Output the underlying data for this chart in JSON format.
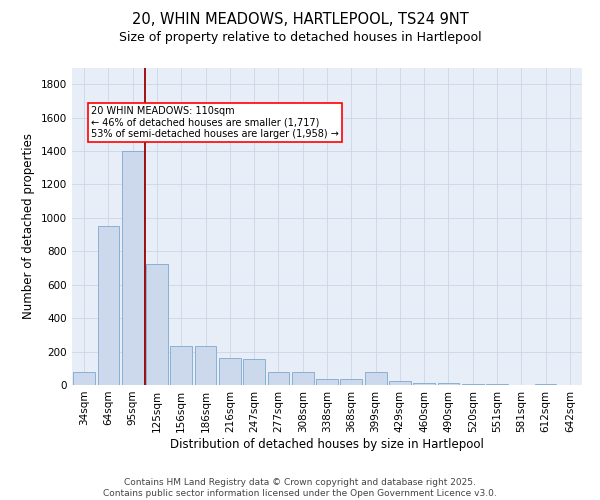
{
  "title_line1": "20, WHIN MEADOWS, HARTLEPOOL, TS24 9NT",
  "title_line2": "Size of property relative to detached houses in Hartlepool",
  "xlabel": "Distribution of detached houses by size in Hartlepool",
  "ylabel": "Number of detached properties",
  "categories": [
    "34sqm",
    "64sqm",
    "95sqm",
    "125sqm",
    "156sqm",
    "186sqm",
    "216sqm",
    "247sqm",
    "277sqm",
    "308sqm",
    "338sqm",
    "368sqm",
    "399sqm",
    "429sqm",
    "460sqm",
    "490sqm",
    "520sqm",
    "551sqm",
    "581sqm",
    "612sqm",
    "642sqm"
  ],
  "values": [
    75,
    950,
    1400,
    725,
    235,
    235,
    160,
    155,
    80,
    80,
    35,
    35,
    80,
    25,
    10,
    10,
    5,
    5,
    0,
    5,
    0
  ],
  "bar_color": "#ccd9ec",
  "bar_edge_color": "#7fa8cc",
  "grid_color": "#ccd6e8",
  "background_color": "#e8eef8",
  "vline_color": "#990000",
  "annotation_text": "20 WHIN MEADOWS: 110sqm\n← 46% of detached houses are smaller (1,717)\n53% of semi-detached houses are larger (1,958) →",
  "ylim": [
    0,
    1900
  ],
  "yticks": [
    0,
    200,
    400,
    600,
    800,
    1000,
    1200,
    1400,
    1600,
    1800
  ],
  "footnote": "Contains HM Land Registry data © Crown copyright and database right 2025.\nContains public sector information licensed under the Open Government Licence v3.0.",
  "title_fontsize": 10.5,
  "subtitle_fontsize": 9,
  "axis_label_fontsize": 8.5,
  "tick_fontsize": 7.5,
  "footnote_fontsize": 6.5
}
